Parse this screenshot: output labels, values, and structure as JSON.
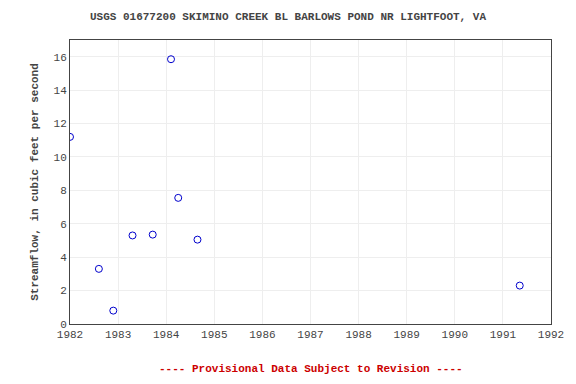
{
  "chart_data": {
    "type": "scatter",
    "title": "USGS 01677200 SKIMINO CREEK BL BARLOWS POND NR LIGHTFOOT, VA",
    "ylabel": "Streamflow, in cubic feet per second",
    "x": [
      1982.0,
      1982.6,
      1982.9,
      1983.3,
      1983.72,
      1984.1,
      1984.25,
      1984.65,
      1991.35
    ],
    "values": [
      11.2,
      3.3,
      0.8,
      5.3,
      5.35,
      15.85,
      7.55,
      5.05,
      2.3
    ],
    "color": "#0000cc",
    "marker": "circle-open",
    "xlim": [
      1982,
      1992
    ],
    "ylim": [
      0,
      17
    ],
    "xticks": [
      1982,
      1983,
      1984,
      1985,
      1986,
      1987,
      1988,
      1989,
      1990,
      1991,
      1992
    ],
    "yticks": [
      0,
      2,
      4,
      6,
      8,
      10,
      12,
      14,
      16
    ],
    "grid": true,
    "annotations": [
      {
        "text": "---- Provisional Data Subject to Revision ----",
        "color": "#cc0000"
      }
    ]
  }
}
